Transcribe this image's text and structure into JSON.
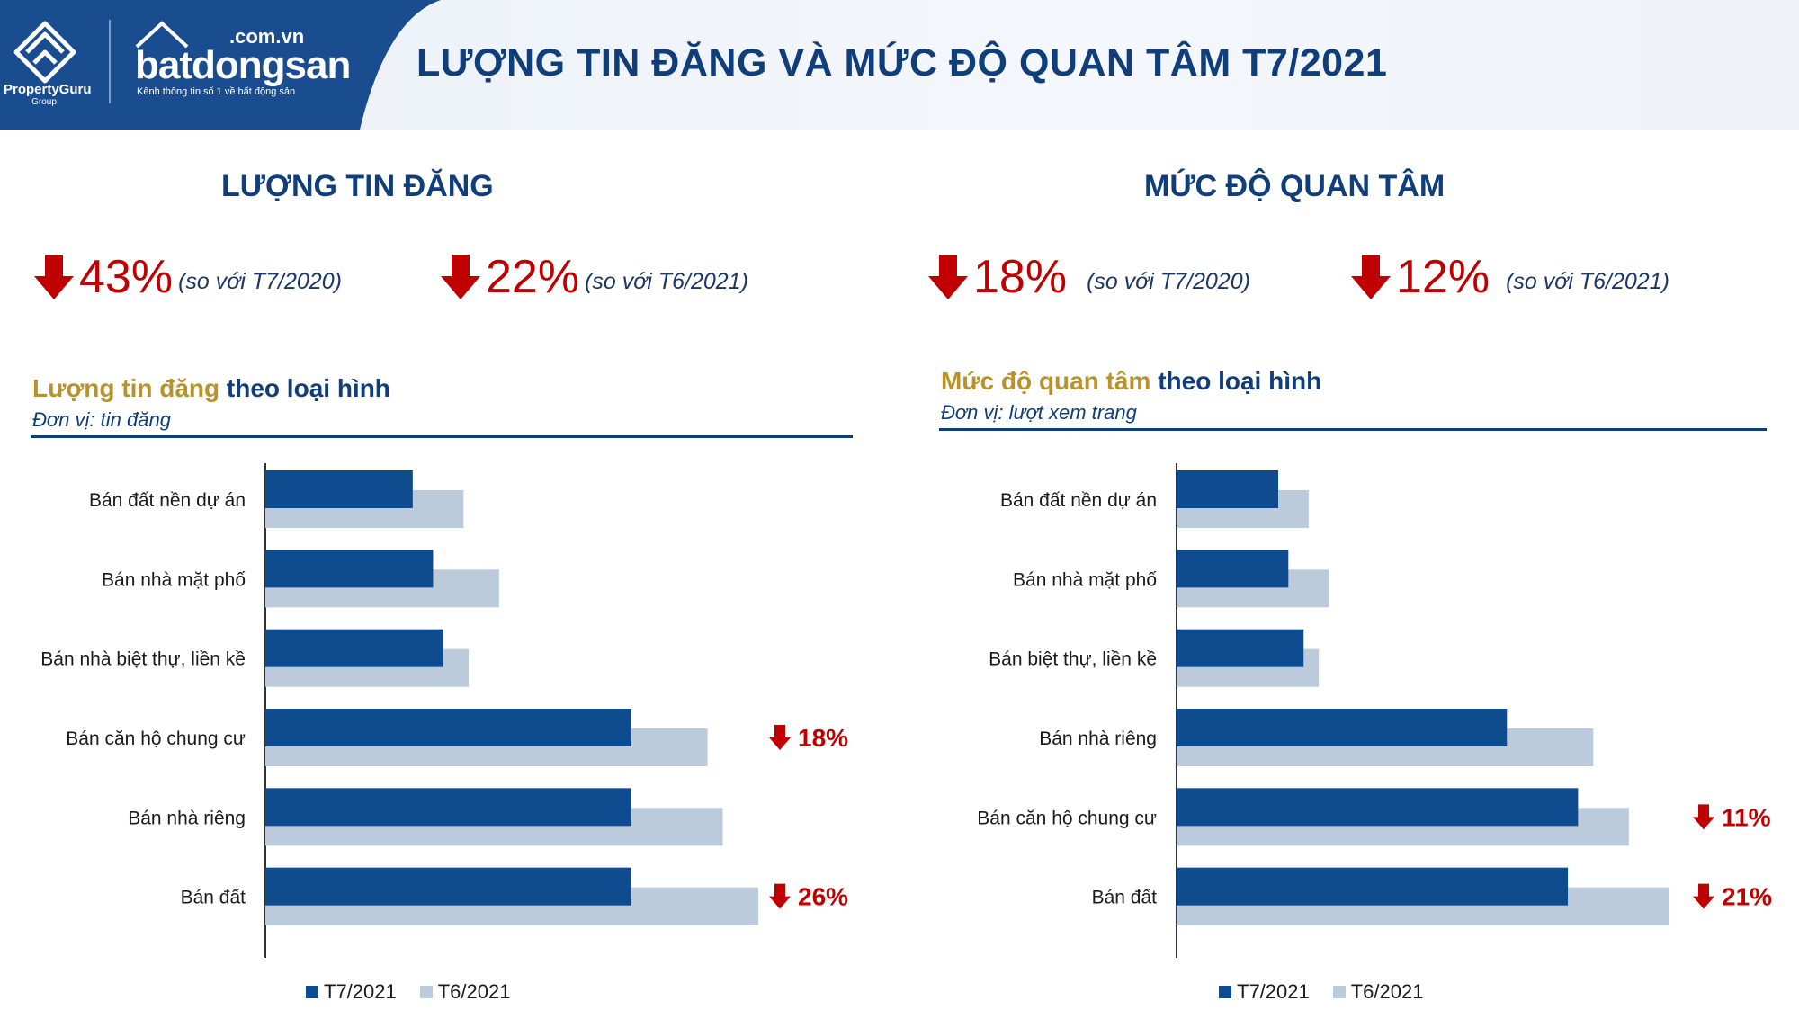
{
  "header": {
    "group_name": "PropertyGuru",
    "group_sub": "Group",
    "brand_name": "batdongsan",
    "brand_domain": ".com.vn",
    "brand_tagline": "Kênh thông tin số 1 về bất động sản",
    "title": "LƯỢNG TIN ĐĂNG VÀ MỨC ĐỘ QUAN TÂM T7/2021",
    "colors": {
      "brand_blue": "#1a4d8f",
      "title_navy": "#0f3e7a"
    }
  },
  "left": {
    "section_title": "LƯỢNG TIN ĐĂNG",
    "stats": [
      {
        "pct": "43%",
        "compare": "(so với T7/2020)"
      },
      {
        "pct": "22%",
        "compare": "(so với T6/2021)"
      }
    ],
    "sub_title_gold": "Lượng tin đăng",
    "sub_title_navy": "theo loại hình",
    "unit": "Đơn vị: tin đăng"
  },
  "right": {
    "section_title": "MỨC ĐỘ QUAN TÂM",
    "stats": [
      {
        "pct": "18%",
        "compare": "(so với T7/2020)"
      },
      {
        "pct": "12%",
        "compare": "(so với T6/2021)"
      }
    ],
    "sub_title_gold": "Mức độ quan tâm",
    "sub_title_navy": "theo loại hình",
    "unit": "Đơn vị: lượt xem trang"
  },
  "legend": {
    "current": "T7/2021",
    "previous": "T6/2021"
  },
  "colors": {
    "current": "#0f4c8f",
    "previous": "#bccbdc",
    "down": "#c00000"
  },
  "chart_data": [
    {
      "type": "bar",
      "orientation": "horizontal",
      "categories": [
        "Bán đất nền dự án",
        "Bán nhà mặt phố",
        "Bán nhà biệt thự, liền kề",
        "Bán căn hộ chung cư",
        "Bán nhà riêng",
        "Bán đất"
      ],
      "series": [
        {
          "name": "T7/2021",
          "values": [
            29,
            33,
            35,
            72,
            72,
            72
          ]
        },
        {
          "name": "T6/2021",
          "values": [
            39,
            46,
            40,
            87,
            90,
            97
          ]
        }
      ],
      "xlim": [
        0,
        100
      ],
      "annotations": [
        {
          "category": "Bán căn hộ chung cư",
          "text": "18%"
        },
        {
          "category": "Bán đất",
          "text": "26%"
        }
      ]
    },
    {
      "type": "bar",
      "orientation": "horizontal",
      "categories": [
        "Bán đất nền dự án",
        "Bán nhà mặt phố",
        "Bán biệt thự, liền kề",
        "Bán nhà riêng",
        "Bán căn hộ chung cư",
        "Bán đất"
      ],
      "series": [
        {
          "name": "T7/2021",
          "values": [
            20,
            22,
            25,
            65,
            79,
            77
          ]
        },
        {
          "name": "T6/2021",
          "values": [
            26,
            30,
            28,
            82,
            89,
            97
          ]
        }
      ],
      "xlim": [
        0,
        100
      ],
      "annotations": [
        {
          "category": "Bán căn hộ chung cư",
          "text": "11%"
        },
        {
          "category": "Bán đất",
          "text": "21%"
        }
      ]
    }
  ]
}
